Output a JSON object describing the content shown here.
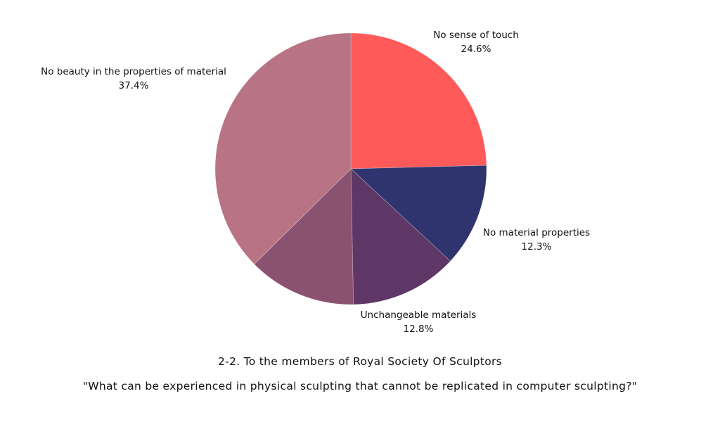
{
  "chart_data": {
    "type": "pie",
    "start_angle": "top",
    "direction": "clockwise",
    "slices": [
      {
        "name": "No sense of touch",
        "value": 24.6,
        "label": "24.6%",
        "color": "#FF5A5A"
      },
      {
        "name": "No material properties",
        "value": 12.3,
        "label": "12.3%",
        "color": "#2F346E"
      },
      {
        "name": "Unchangeable materials",
        "value": 12.8,
        "label": "12.8%",
        "color": "#5E3766"
      },
      {
        "name": "",
        "value": 12.9,
        "label": "",
        "color": "#8A5270"
      },
      {
        "name": "No beauty in the properties of material",
        "value": 37.4,
        "label": "37.4%",
        "color": "#B87385"
      }
    ],
    "caption_line1": "2-2. To the members of Royal Society Of Sculptors",
    "caption_line2": "\"What can be experienced in physical sculpting that cannot be replicated in computer sculpting?\""
  }
}
